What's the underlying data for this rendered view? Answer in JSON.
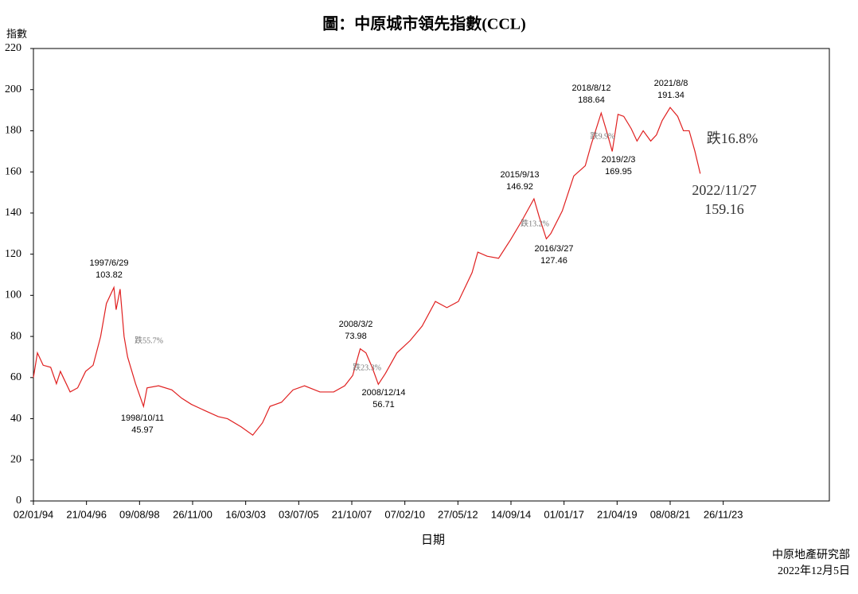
{
  "chart_data": {
    "type": "line",
    "title": "圖：中原城市領先指數(CCL)",
    "y_label": "指數",
    "x_label": "日期",
    "source": "中原地產研究部",
    "date": "2022年12月5日",
    "x": [
      "1994-01-02",
      "1994-03-06",
      "1994-06-05",
      "1994-10-02",
      "1995-01-01",
      "1995-03-05",
      "1995-08-06",
      "1995-12-03",
      "1996-04-07",
      "1996-08-04",
      "1996-12-01",
      "1997-03-02",
      "1997-06-29",
      "1997-08-03",
      "1997-10-05",
      "1997-12-07",
      "1998-02-01",
      "1998-06-07",
      "1998-10-11",
      "1998-12-06",
      "1999-06-06",
      "2000-01-02",
      "2000-06-04",
      "2000-11-05",
      "2001-06-03",
      "2002-01-06",
      "2002-06-02",
      "2003-01-05",
      "2003-07-06",
      "2003-12-07",
      "2004-04-04",
      "2004-10-03",
      "2005-04-03",
      "2005-10-02",
      "2006-06-04",
      "2007-01-07",
      "2007-07-01",
      "2007-11-04",
      "2008-03-02",
      "2008-06-01",
      "2008-09-07",
      "2008-12-14",
      "2009-04-05",
      "2009-10-04",
      "2010-05-02",
      "2010-11-07",
      "2011-06-05",
      "2011-12-04",
      "2012-06-03",
      "2013-01-06",
      "2013-04-07",
      "2013-09-01",
      "2014-03-02",
      "2014-09-07",
      "2015-03-01",
      "2015-09-13",
      "2015-12-06",
      "2016-03-27",
      "2016-06-05",
      "2016-12-04",
      "2017-06-04",
      "2017-12-03",
      "2018-03-04",
      "2018-08-12",
      "2018-11-04",
      "2019-02-03",
      "2019-05-05",
      "2019-08-04",
      "2019-12-01",
      "2020-03-01",
      "2020-06-07",
      "2020-10-04",
      "2021-01-03",
      "2021-04-04",
      "2021-08-08",
      "2021-12-05",
      "2022-03-06",
      "2022-06-05",
      "2022-09-04",
      "2022-11-27"
    ],
    "series": [
      {
        "name": "CCL",
        "color": "#e02020",
        "values": [
          60,
          72,
          66,
          65,
          57,
          63,
          53,
          55,
          63,
          66,
          80,
          96,
          103.82,
          93,
          103,
          80,
          70,
          57,
          45.97,
          55,
          56,
          54,
          50,
          47,
          44,
          41,
          40,
          36,
          32,
          38,
          46,
          48,
          54,
          56,
          53,
          53,
          56,
          61,
          73.98,
          72,
          65,
          56.71,
          62,
          72,
          78,
          85,
          97,
          94,
          97,
          111,
          121,
          119,
          118,
          127,
          136,
          146.92,
          138,
          127.46,
          130,
          141,
          158,
          163,
          173,
          188.64,
          180,
          169.95,
          188,
          187,
          181,
          175,
          180,
          175,
          178,
          185,
          191.34,
          187,
          180,
          180,
          170,
          159.16
        ]
      }
    ],
    "xlim": [
      "1994-01-02",
      "2028-07-02"
    ],
    "xticks": [
      {
        "value": "1994-01-02",
        "label": "02/01/94"
      },
      {
        "value": "1996-04-21",
        "label": "21/04/96"
      },
      {
        "value": "1998-08-09",
        "label": "09/08/98"
      },
      {
        "value": "2000-11-26",
        "label": "26/11/00"
      },
      {
        "value": "2003-03-16",
        "label": "16/03/03"
      },
      {
        "value": "2005-07-03",
        "label": "03/07/05"
      },
      {
        "value": "2007-10-21",
        "label": "21/10/07"
      },
      {
        "value": "2010-02-07",
        "label": "07/02/10"
      },
      {
        "value": "2012-05-27",
        "label": "27/05/12"
      },
      {
        "value": "2014-09-14",
        "label": "14/09/14"
      },
      {
        "value": "2017-01-01",
        "label": "01/01/17"
      },
      {
        "value": "2019-04-21",
        "label": "21/04/19"
      },
      {
        "value": "2021-08-08",
        "label": "08/08/21"
      },
      {
        "value": "2023-11-26",
        "label": "26/11/23"
      }
    ],
    "ylim": [
      0,
      220
    ],
    "yticks": [
      0,
      20,
      40,
      60,
      80,
      100,
      120,
      140,
      160,
      180,
      200,
      220
    ],
    "grid": false,
    "annotations": [
      {
        "date": "1997/6/29",
        "value": 103.82
      },
      {
        "date": "1998/10/11",
        "value": 45.97
      },
      {
        "date": "2008/3/2",
        "value": 73.98
      },
      {
        "date": "2008/12/14",
        "value": 56.71
      },
      {
        "date": "2015/9/13",
        "value": 146.92
      },
      {
        "date": "2016/3/27",
        "value": 127.46
      },
      {
        "date": "2018/8/12",
        "value": 188.64
      },
      {
        "date": "2019/2/3",
        "value": 169.95
      },
      {
        "date": "2021/8/8",
        "value": 191.34
      },
      {
        "date": "2022/11/27",
        "value": 159.16
      }
    ],
    "drops": [
      "跌55.7%",
      "跌23.3%",
      "跌13.2%",
      "跌9.9%",
      "跌16.8%"
    ]
  }
}
